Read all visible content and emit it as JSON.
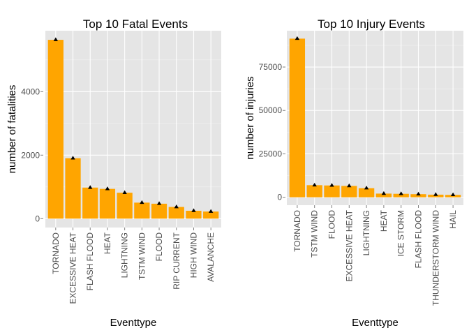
{
  "chart_data": [
    {
      "type": "bar",
      "title": "Top 10 Fatal Events",
      "xlabel": "Eventtype",
      "ylabel": "number of fatalities",
      "categories": [
        "TORNADO",
        "EXCESSIVE HEAT",
        "FLASH FLOOD",
        "HEAT",
        "LIGHTNING",
        "TSTM WIND",
        "FLOOD",
        "RIP CURRENT",
        "HIGH WIND",
        "AVALANCHE"
      ],
      "values": [
        5633,
        1903,
        978,
        937,
        816,
        504,
        470,
        368,
        248,
        224
      ],
      "yticks": [
        0,
        2000,
        4000
      ],
      "ytick_labels": [
        "0",
        "2000",
        "4000"
      ],
      "ylim": [
        -280,
        5920
      ],
      "bar_color": "#FFA500",
      "marker_color": "#000000",
      "panel_bg": "#E5E5E5",
      "grid": true,
      "legend": "none"
    },
    {
      "type": "bar",
      "title": "Top 10 Injury Events",
      "xlabel": "Eventtype",
      "ylabel": "number of injuries",
      "categories": [
        "TORNADO",
        "TSTM WIND",
        "FLOOD",
        "EXCESSIVE HEAT",
        "LIGHTNING",
        "HEAT",
        "ICE STORM",
        "FLASH FLOOD",
        "THUNDERSTORM WIND",
        "HAIL"
      ],
      "values": [
        91346,
        6957,
        6789,
        6525,
        5230,
        2100,
        1975,
        1777,
        1488,
        1361
      ],
      "yticks": [
        0,
        25000,
        50000,
        75000
      ],
      "ytick_labels": [
        "0",
        "25000",
        "50000",
        "75000"
      ],
      "ylim": [
        -4570,
        95920
      ],
      "bar_color": "#FFA500",
      "marker_color": "#000000",
      "panel_bg": "#E5E5E5",
      "grid": true,
      "legend": "none"
    }
  ]
}
